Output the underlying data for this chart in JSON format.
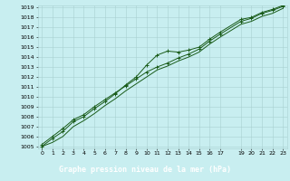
{
  "title": "Graphe pression niveau de la mer (hPa)",
  "bg_color": "#c8eef0",
  "grid_color": "#a8d0d0",
  "line_color": "#1a5c1a",
  "x_values": [
    0,
    1,
    2,
    3,
    4,
    5,
    6,
    7,
    8,
    9,
    10,
    11,
    12,
    13,
    14,
    15,
    16,
    17,
    19,
    20,
    21,
    22,
    23
  ],
  "line1": [
    1005.0,
    1005.8,
    1006.5,
    1007.5,
    1008.0,
    1008.8,
    1009.5,
    1010.3,
    1011.2,
    1012.0,
    1013.2,
    1014.2,
    1014.6,
    1014.5,
    1014.7,
    1015.0,
    1015.8,
    1016.5,
    1017.8,
    1018.0,
    1018.5,
    1018.8,
    1019.2
  ],
  "line2": [
    1005.2,
    1006.0,
    1006.8,
    1007.7,
    1008.2,
    1009.0,
    1009.7,
    1010.4,
    1011.1,
    1011.8,
    1012.5,
    1013.0,
    1013.4,
    1013.9,
    1014.3,
    1014.8,
    1015.6,
    1016.3,
    1017.6,
    1017.9,
    1018.4,
    1018.7,
    1019.1
  ],
  "line3": [
    1005.0,
    1005.4,
    1006.0,
    1007.0,
    1007.6,
    1008.3,
    1009.1,
    1009.8,
    1010.6,
    1011.3,
    1012.0,
    1012.7,
    1013.1,
    1013.6,
    1014.0,
    1014.5,
    1015.3,
    1016.0,
    1017.3,
    1017.6,
    1018.1,
    1018.4,
    1018.9
  ],
  "ylim_min": 1005,
  "ylim_max": 1019,
  "xlim_min": 0,
  "xlim_max": 23,
  "yticks": [
    1005,
    1006,
    1007,
    1008,
    1009,
    1010,
    1011,
    1012,
    1013,
    1014,
    1015,
    1016,
    1017,
    1018,
    1019
  ],
  "xticks": [
    0,
    1,
    2,
    3,
    4,
    5,
    6,
    7,
    8,
    9,
    10,
    11,
    12,
    13,
    14,
    15,
    16,
    17,
    19,
    20,
    21,
    22,
    23
  ],
  "label_bg_color": "#2a5e2a",
  "label_text_color": "#ffffff",
  "tick_fontsize": 4.5,
  "label_fontsize": 6.0
}
